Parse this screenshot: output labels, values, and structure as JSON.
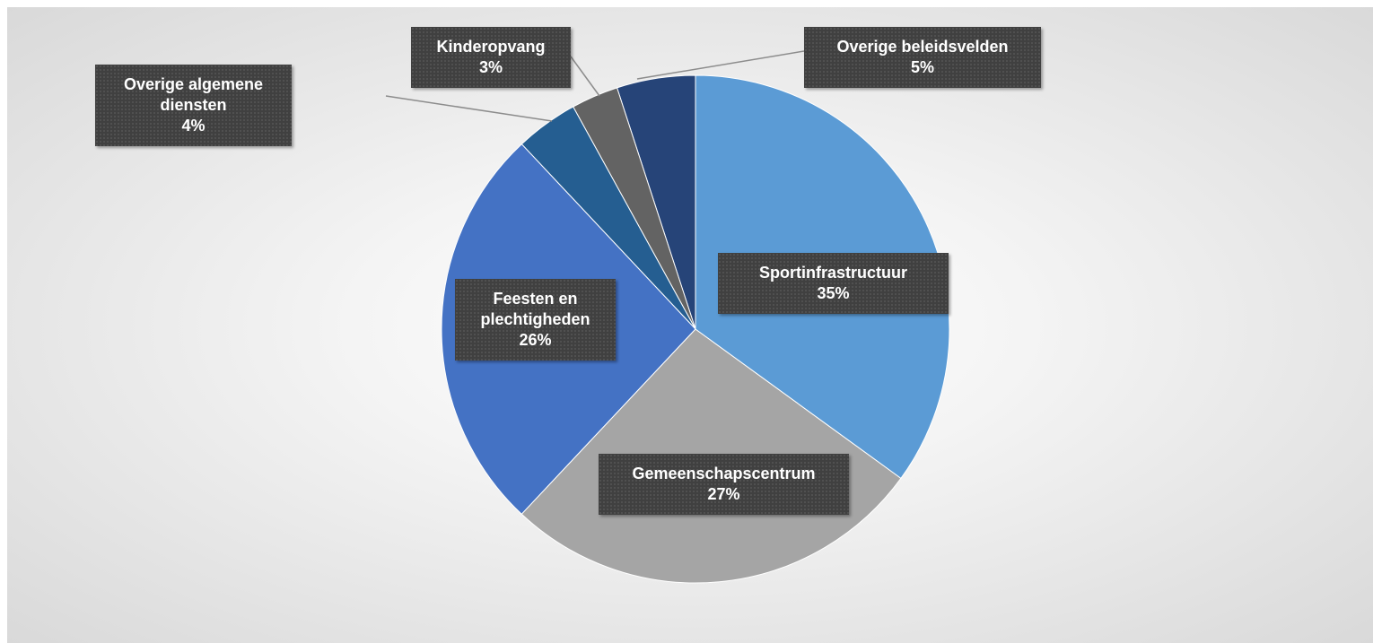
{
  "chart_data": {
    "type": "pie",
    "categories": [
      "Sportinfrastructuur",
      "Gemeenschapscentrum",
      "Feesten en plechtigheden",
      "Overige algemene diensten",
      "Kinderopvang",
      "Overige beleidsvelden"
    ],
    "values": [
      35,
      27,
      26,
      4,
      3,
      5
    ],
    "value_labels": [
      "35%",
      "27%",
      "26%",
      "4%",
      "3%",
      "5%"
    ],
    "colors": [
      "#5b9bd5",
      "#a5a5a5",
      "#4472c4",
      "#255e91",
      "#636363",
      "#264478"
    ]
  }
}
